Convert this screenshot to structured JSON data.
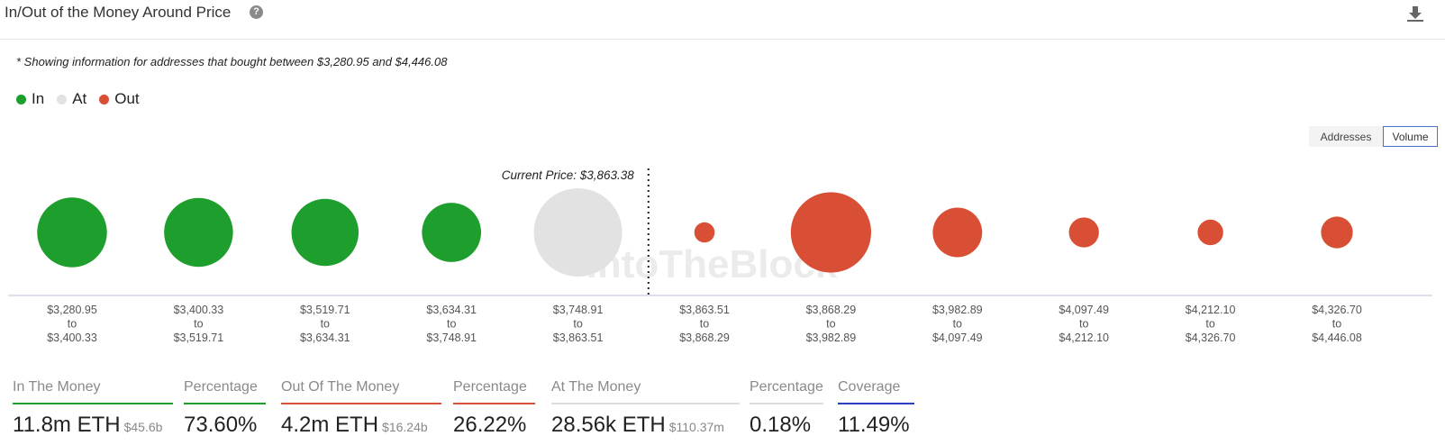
{
  "header": {
    "title": "In/Out of the Money Around Price",
    "help_icon": "question-circle-icon",
    "download_icon": "download-icon"
  },
  "note": "* Showing information for addresses that bought between $3,280.95 and $4,446.08",
  "legend": [
    {
      "label": "In",
      "color": "#1e9e2c"
    },
    {
      "label": "At",
      "color": "#e2e2e2"
    },
    {
      "label": "Out",
      "color": "#d94f35"
    }
  ],
  "toggle": {
    "addresses_label": "Addresses",
    "volume_label": "Volume",
    "selected": "Volume"
  },
  "chart_data": {
    "type": "bubble",
    "current_price_label": "Current Price: $3,863.38",
    "watermark": "IntoTheBlock",
    "buckets": [
      {
        "from": "$3,280.95",
        "to": "$3,400.33",
        "status": "In",
        "relative_size": 0.79
      },
      {
        "from": "$3,400.33",
        "to": "$3,519.71",
        "status": "In",
        "relative_size": 0.78
      },
      {
        "from": "$3,519.71",
        "to": "$3,634.31",
        "status": "In",
        "relative_size": 0.76
      },
      {
        "from": "$3,634.31",
        "to": "$3,748.91",
        "status": "In",
        "relative_size": 0.67
      },
      {
        "from": "$3,748.91",
        "to": "$3,863.51",
        "status": "At",
        "relative_size": 1.0
      },
      {
        "from": "$3,863.51",
        "to": "$3,868.29",
        "status": "Out",
        "relative_size": 0.23
      },
      {
        "from": "$3,868.29",
        "to": "$3,982.89",
        "status": "Out",
        "relative_size": 0.91
      },
      {
        "from": "$3,982.89",
        "to": "$4,097.49",
        "status": "Out",
        "relative_size": 0.56
      },
      {
        "from": "$4,097.49",
        "to": "$4,212.10",
        "status": "Out",
        "relative_size": 0.34
      },
      {
        "from": "$4,212.10",
        "to": "$4,326.70",
        "status": "Out",
        "relative_size": 0.29
      },
      {
        "from": "$4,326.70",
        "to": "$4,446.08",
        "status": "Out",
        "relative_size": 0.36
      }
    ],
    "to_word": "to",
    "current_price_after_bucket": 5
  },
  "metrics": [
    {
      "label": "In The Money",
      "value": "11.8m ETH",
      "sub": "$45.6b",
      "color": "#1e9e2c"
    },
    {
      "label": "Percentage",
      "value": "73.60%",
      "sub": "",
      "color": "#1e9e2c"
    },
    {
      "label": "Out Of The Money",
      "value": "4.2m ETH",
      "sub": "$16.24b",
      "color": "#d94f35"
    },
    {
      "label": "Percentage",
      "value": "26.22%",
      "sub": "",
      "color": "#d94f35"
    },
    {
      "label": "At The Money",
      "value": "28.56k ETH",
      "sub": "$110.37m",
      "color": "#dddddd"
    },
    {
      "label": "Percentage",
      "value": "0.18%",
      "sub": "",
      "color": "#dddddd"
    },
    {
      "label": "Coverage",
      "value": "11.49%",
      "sub": "",
      "color": "#2c3fbf"
    }
  ]
}
